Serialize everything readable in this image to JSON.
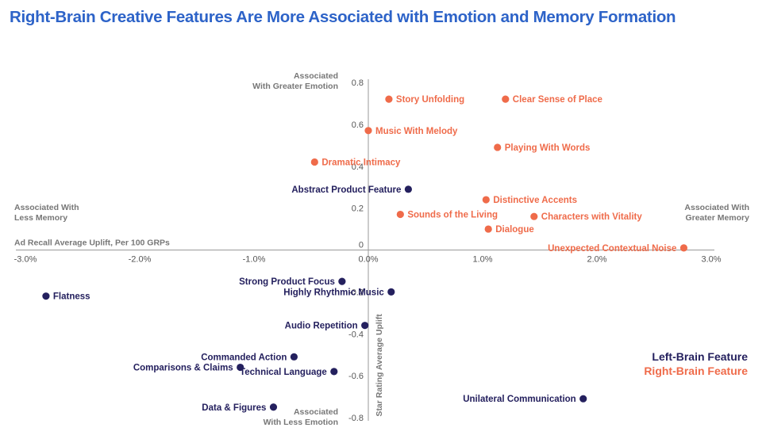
{
  "title": "Right-Brain Creative Features Are More Associated with Emotion and Memory Formation",
  "colors": {
    "left_brain": "#24205e",
    "right_brain": "#ef6b4a",
    "title": "#2d63c8"
  },
  "chart_data": {
    "type": "scatter",
    "title": "Right-Brain Creative Features Are More Associated with Emotion and Memory Formation",
    "xlabel": "Ad Recall Average Uplift, Per 100 GRPs",
    "ylabel": "Star Rating Average Uplift",
    "xlim": [
      -0.03,
      0.03
    ],
    "ylim": [
      -0.8,
      0.8
    ],
    "x_ticks": [
      {
        "value": -0.03,
        "label": "-3.0%"
      },
      {
        "value": -0.02,
        "label": "-2.0%"
      },
      {
        "value": -0.01,
        "label": "-1.0%"
      },
      {
        "value": 0.0,
        "label": "0.0%"
      },
      {
        "value": 0.01,
        "label": "1.0%"
      },
      {
        "value": 0.02,
        "label": "2.0%"
      },
      {
        "value": 0.03,
        "label": "3.0%"
      }
    ],
    "y_ticks": [
      {
        "value": 0.8,
        "label": "0.8"
      },
      {
        "value": 0.6,
        "label": "0.6"
      },
      {
        "value": 0.4,
        "label": "0.4"
      },
      {
        "value": 0.2,
        "label": "0.2"
      },
      {
        "value": 0.0,
        "label": "0"
      },
      {
        "value": -0.2,
        "label": "-0.2"
      },
      {
        "value": -0.4,
        "label": "-0.4"
      },
      {
        "value": -0.6,
        "label": "-0.6"
      },
      {
        "value": -0.8,
        "label": "-0.8"
      }
    ],
    "axis_notes": {
      "top": "Associated With Greater Emotion",
      "bottom": "Associated With Less Emotion",
      "left": "Associated With Less Memory",
      "right": "Associated With Greater Memory"
    },
    "legend": {
      "placement": "bottom-right",
      "entries": [
        {
          "name": "Left-Brain Feature",
          "series": "left_brain"
        },
        {
          "name": "Right-Brain Feature",
          "series": "right_brain"
        }
      ]
    },
    "series": [
      {
        "name": "Right-Brain Feature",
        "key": "right_brain",
        "points": [
          {
            "label": "Story Unfolding",
            "x": 0.0018,
            "y": 0.72,
            "anchor": "right"
          },
          {
            "label": "Clear Sense of Place",
            "x": 0.012,
            "y": 0.72,
            "anchor": "right"
          },
          {
            "label": "Music With Melody",
            "x": 0.0,
            "y": 0.57,
            "anchor": "right"
          },
          {
            "label": "Playing With Words",
            "x": 0.0113,
            "y": 0.49,
            "anchor": "right"
          },
          {
            "label": "Dramatic Intimacy",
            "x": -0.0047,
            "y": 0.42,
            "anchor": "right"
          },
          {
            "label": "Distinctive Accents",
            "x": 0.0103,
            "y": 0.24,
            "anchor": "right"
          },
          {
            "label": "Sounds of the Living",
            "x": 0.0028,
            "y": 0.17,
            "anchor": "right"
          },
          {
            "label": "Characters with Vitality",
            "x": 0.0145,
            "y": 0.16,
            "anchor": "right"
          },
          {
            "label": "Dialogue",
            "x": 0.0105,
            "y": 0.1,
            "anchor": "right"
          },
          {
            "label": "Unexpected Contextual Noise",
            "x": 0.0276,
            "y": 0.01,
            "anchor": "left"
          }
        ]
      },
      {
        "name": "Left-Brain Feature",
        "key": "left_brain",
        "points": [
          {
            "label": "Abstract Product Feature",
            "x": 0.0035,
            "y": 0.29,
            "anchor": "left"
          },
          {
            "label": "Strong Product Focus",
            "x": -0.0023,
            "y": -0.15,
            "anchor": "left"
          },
          {
            "label": "Highly Rhythmic Music",
            "x": 0.002,
            "y": -0.2,
            "anchor": "left"
          },
          {
            "label": "Flatness",
            "x": -0.0282,
            "y": -0.22,
            "anchor": "right"
          },
          {
            "label": "Audio Repetition",
            "x": -0.0003,
            "y": -0.36,
            "anchor": "left"
          },
          {
            "label": "Commanded Action",
            "x": -0.0065,
            "y": -0.51,
            "anchor": "left"
          },
          {
            "label": "Comparisons & Claims",
            "x": -0.0112,
            "y": -0.56,
            "anchor": "left"
          },
          {
            "label": "Technical Language",
            "x": -0.003,
            "y": -0.58,
            "anchor": "left"
          },
          {
            "label": "Data & Figures",
            "x": -0.0083,
            "y": -0.75,
            "anchor": "left"
          },
          {
            "label": "Unilateral Communication",
            "x": 0.0188,
            "y": -0.71,
            "anchor": "left"
          }
        ]
      }
    ]
  }
}
